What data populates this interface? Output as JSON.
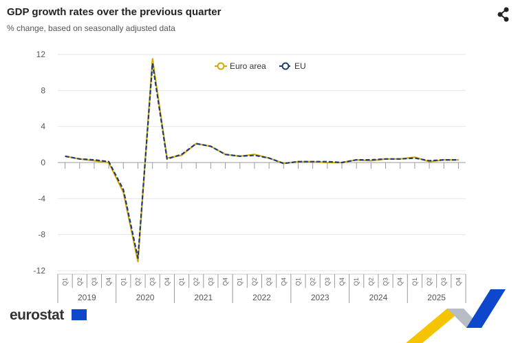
{
  "header": {
    "title": "GDP growth rates over the previous quarter",
    "subtitle": "% change, based on seasonally adjusted data",
    "share_icon": "share-icon"
  },
  "footer": {
    "logo": "eurostat"
  },
  "chart_data": {
    "type": "line",
    "title": "GDP growth rates over the previous quarter",
    "subtitle": "% change, based on seasonally adjusted data",
    "ylim": [
      -12,
      12
    ],
    "yticks": [
      -12,
      -8,
      -4,
      0,
      4,
      8,
      12
    ],
    "grid": true,
    "legend": "top-center",
    "years": [
      "2019",
      "2020",
      "2021",
      "2022",
      "2023",
      "2024",
      "2025"
    ],
    "quarters": [
      "Q1",
      "Q2",
      "Q3",
      "Q4"
    ],
    "series": [
      {
        "name": "Euro area",
        "color": "#d4a900",
        "dash": false,
        "values": [
          0.7,
          0.4,
          0.2,
          0.0,
          -3.3,
          -11.0,
          11.5,
          0.5,
          0.8,
          2.1,
          1.8,
          0.9,
          0.7,
          0.9,
          0.5,
          -0.1,
          0.1,
          0.1,
          0.0,
          0.0,
          0.3,
          0.2,
          0.4,
          0.4,
          0.6,
          0.1,
          0.3,
          0.3
        ]
      },
      {
        "name": "EU",
        "color": "#1f3a75",
        "dash": true,
        "values": [
          0.7,
          0.4,
          0.3,
          0.1,
          -3.0,
          -10.6,
          11.0,
          0.4,
          0.9,
          2.1,
          1.8,
          0.9,
          0.7,
          0.8,
          0.5,
          -0.1,
          0.1,
          0.1,
          0.1,
          0.0,
          0.3,
          0.3,
          0.4,
          0.4,
          0.5,
          0.2,
          0.3,
          0.3
        ]
      }
    ]
  }
}
